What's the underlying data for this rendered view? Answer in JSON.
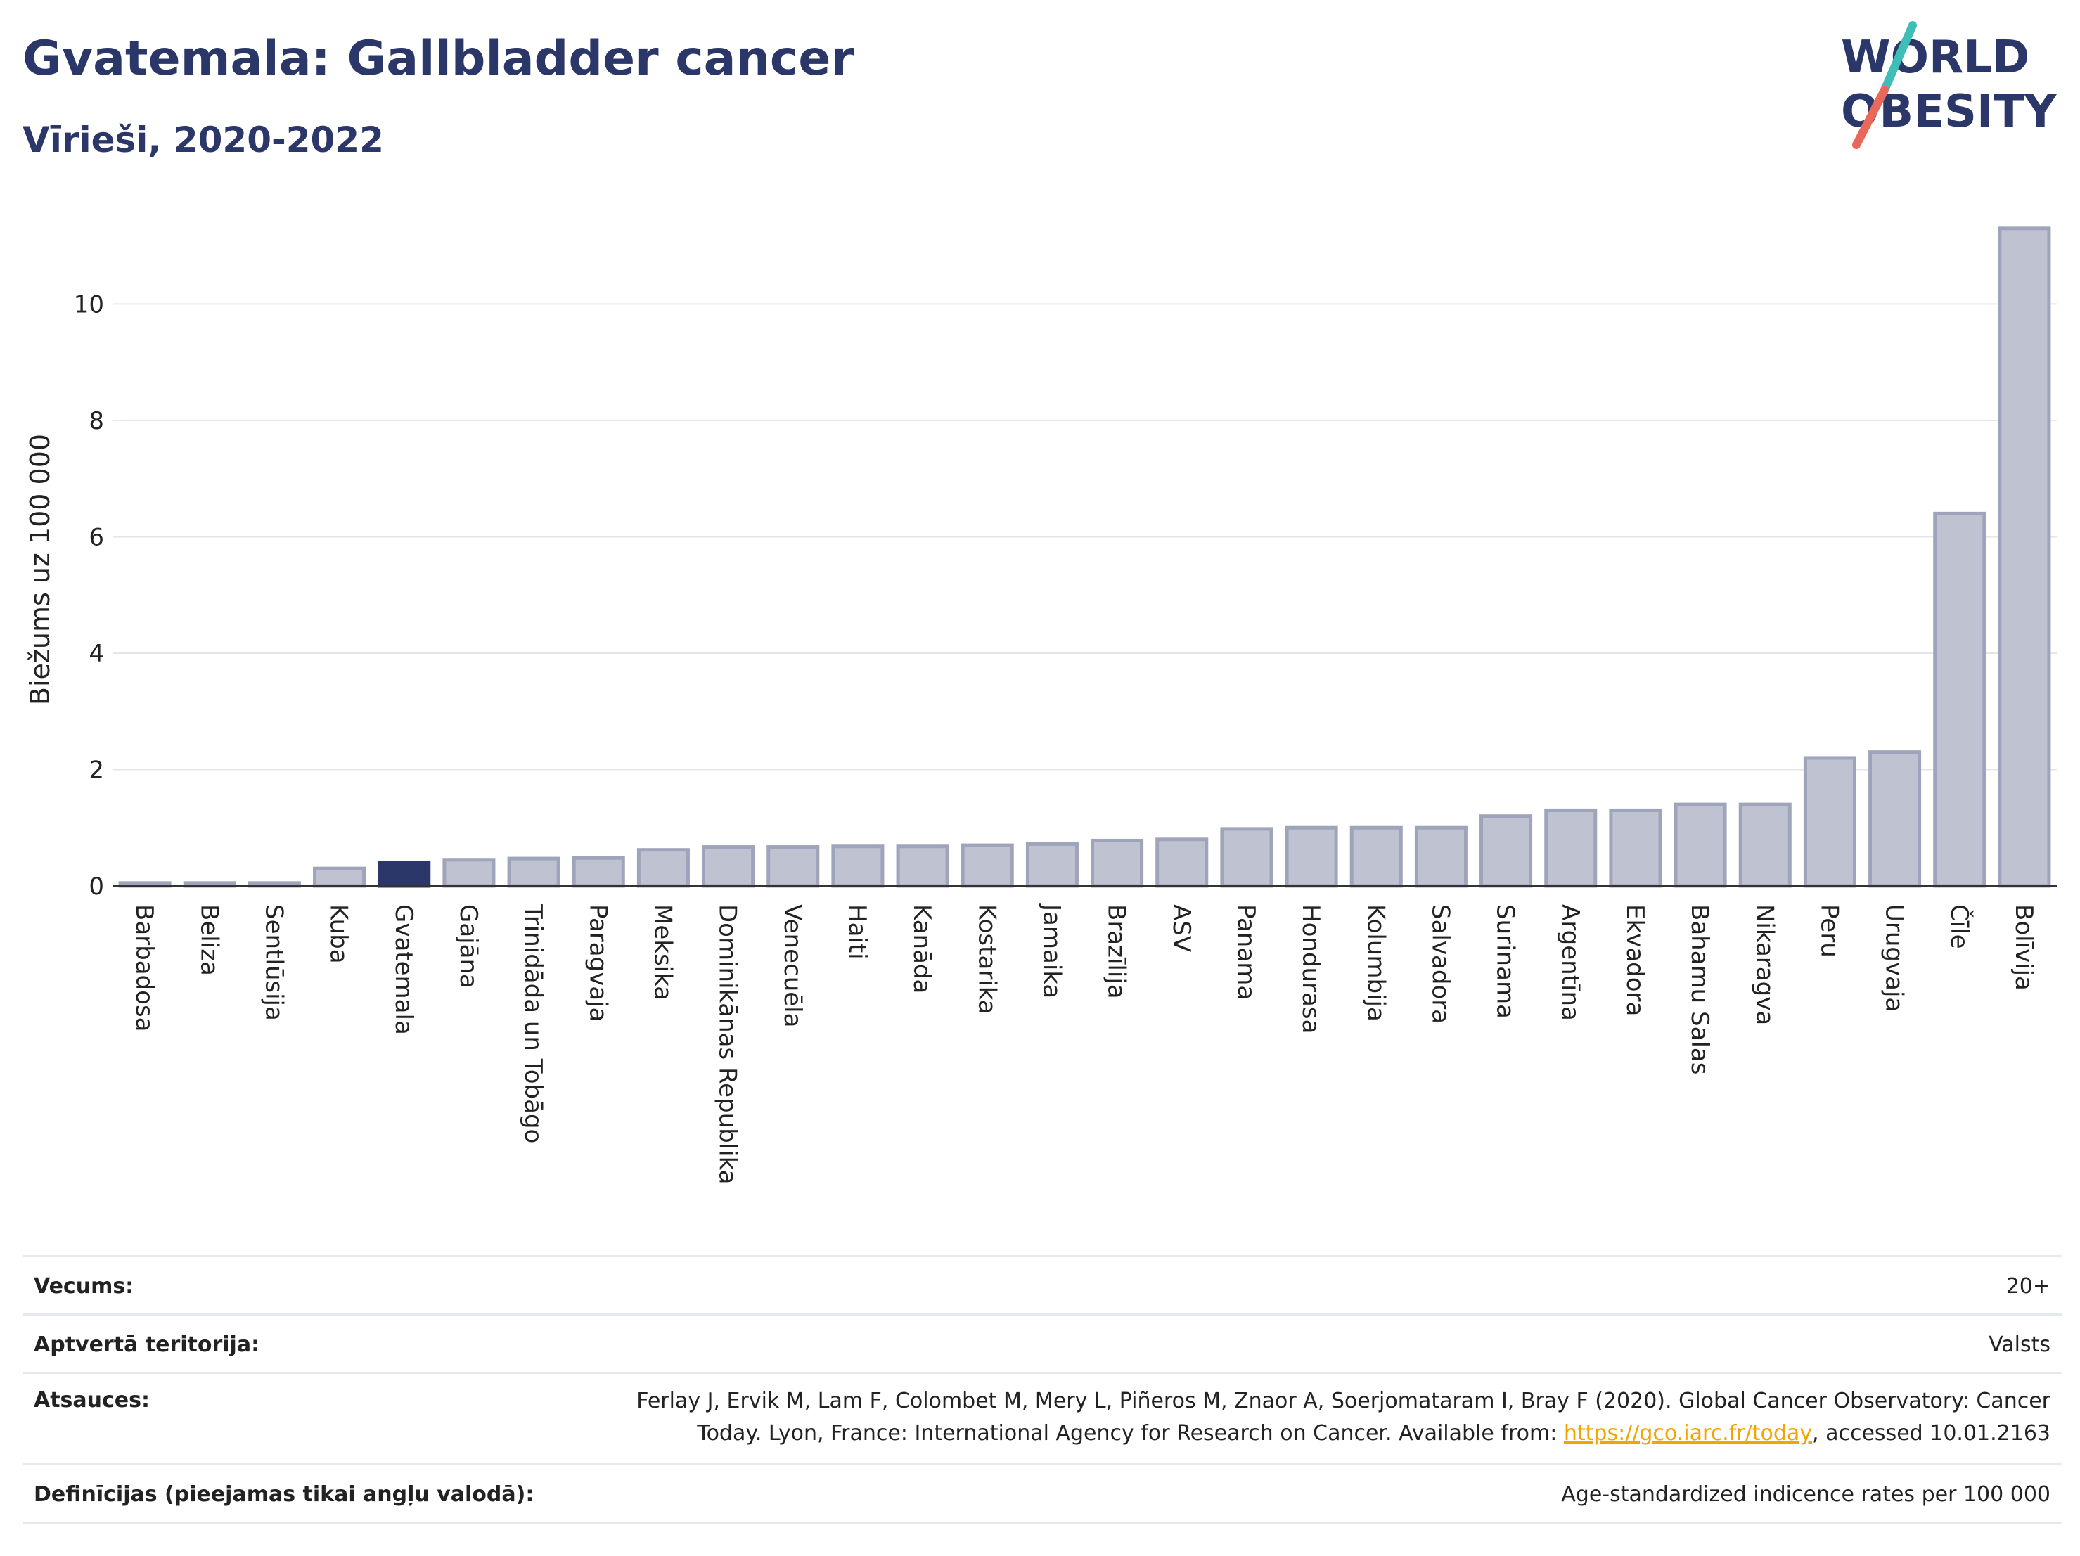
{
  "header": {
    "title": "Gvatemala: Gallbladder cancer",
    "subtitle": "Vīrieši, 2020-2022"
  },
  "logo": {
    "line1": "WORLD",
    "line2": "OBESITY",
    "stroke_colors": [
      "#3dbfb7",
      "#e8685a"
    ]
  },
  "colors": {
    "bar_default": "#bfc3d1",
    "bar_border": "#9ea4ba",
    "bar_highlight": "#2b3768",
    "text_primary": "#2b3768"
  },
  "chart_data": {
    "type": "bar",
    "ylabel": "Biežums uz 100 000",
    "ylim": [
      0,
      11.6
    ],
    "yticks": [
      0,
      2,
      4,
      6,
      8,
      10
    ],
    "grid": true,
    "highlight": "Gvatemala",
    "categories": [
      "Barbadosa",
      "Beliza",
      "Sentlūsija",
      "Kuba",
      "Gvatemala",
      "Gajāna",
      "Trinidāda un Tobāgo",
      "Paragvaja",
      "Meksika",
      "Dominikānas Republika",
      "Venecuēla",
      "Haiti",
      "Kanāda",
      "Kostarika",
      "Jamaika",
      "Brazīlija",
      "ASV",
      "Panama",
      "Hondurasa",
      "Kolumbija",
      "Salvadora",
      "Surinama",
      "Argentīna",
      "Ekvadora",
      "Bahamu Salas",
      "Nikaragva",
      "Peru",
      "Urugvaja",
      "Čīle",
      "Bolīvija"
    ],
    "values": [
      0.05,
      0.05,
      0.05,
      0.3,
      0.4,
      0.45,
      0.47,
      0.48,
      0.62,
      0.67,
      0.67,
      0.68,
      0.68,
      0.7,
      0.72,
      0.78,
      0.8,
      0.98,
      1.0,
      1.0,
      1.0,
      1.2,
      1.3,
      1.3,
      1.4,
      1.4,
      2.2,
      2.3,
      6.4,
      11.3
    ]
  },
  "info": {
    "rows": [
      {
        "label": "Vecums:",
        "value": "20+"
      },
      {
        "label": "Aptvertā teritorija:",
        "value": "Valsts"
      },
      {
        "label": "Atsauces:",
        "value_pre": "Ferlay J, Ervik M, Lam F, Colombet M, Mery L, Piñeros M, Znaor A, Soerjomataram I, Bray F (2020). Global Cancer Observatory: Cancer Today. Lyon, France: International Agency for Research on Cancer. Available from: ",
        "link": "https://gco.iarc.fr/today",
        "value_post": ", accessed 10.01.2163"
      },
      {
        "label": "Definīcijas (pieejamas tikai angļu valodā):",
        "value": "Age-standardized indicence rates per 100 000"
      }
    ]
  }
}
